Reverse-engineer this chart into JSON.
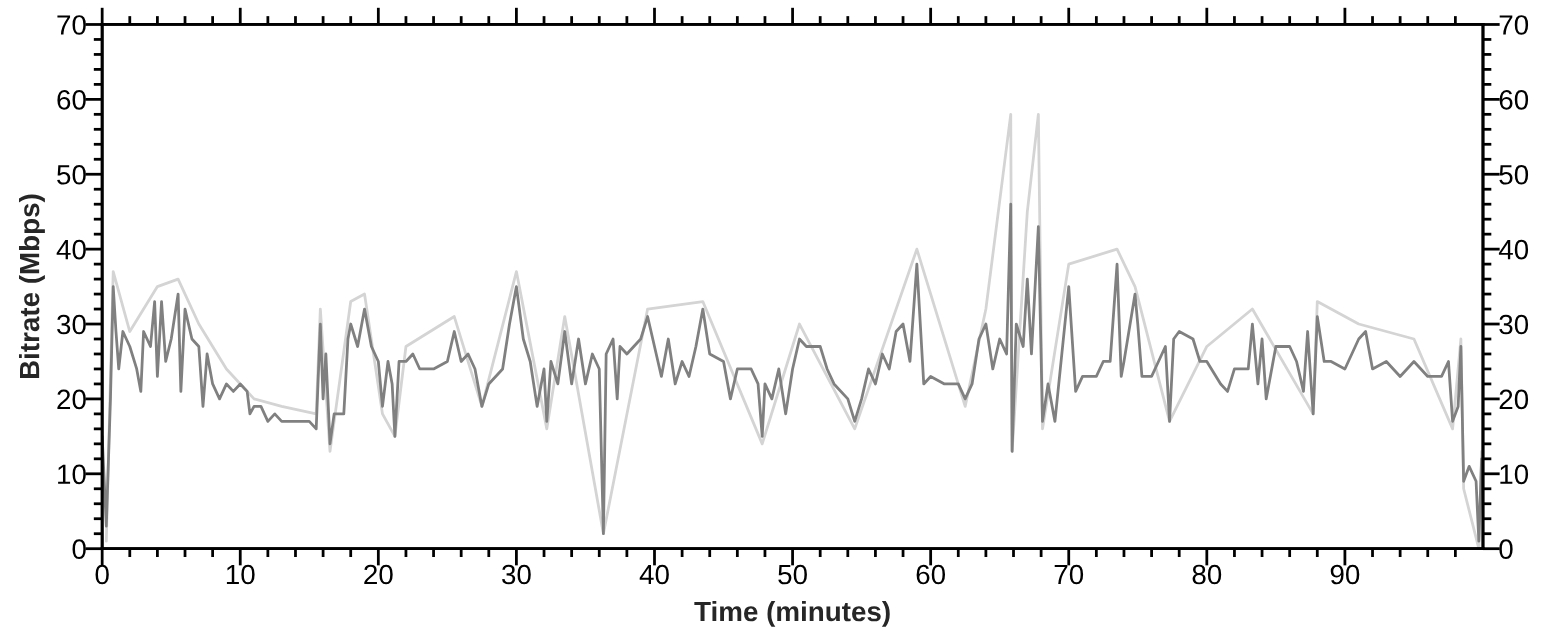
{
  "chart_data": {
    "type": "line",
    "xlabel": "Time (minutes)",
    "ylabel": "Bitrate (Mbps)",
    "xlim": [
      0,
      100
    ],
    "ylim": [
      0,
      70
    ],
    "y2lim": [
      0,
      70
    ],
    "xticks": [
      0,
      {
        "value": 2,
        "label": null
      },
      {
        "value": 4,
        "label": null
      },
      {
        "value": 6,
        "label": null
      },
      {
        "value": 8,
        "label": null
      },
      10,
      {
        "value": 12,
        "label": null
      },
      {
        "value": 14,
        "label": null
      },
      {
        "value": 16,
        "label": null
      },
      {
        "value": 18,
        "label": null
      },
      20,
      {
        "value": 22,
        "label": null
      },
      {
        "value": 24,
        "label": null
      },
      {
        "value": 26,
        "label": null
      },
      {
        "value": 28,
        "label": null
      },
      30,
      {
        "value": 32,
        "label": null
      },
      {
        "value": 34,
        "label": null
      },
      {
        "value": 36,
        "label": null
      },
      {
        "value": 38,
        "label": null
      },
      40,
      {
        "value": 42,
        "label": null
      },
      {
        "value": 44,
        "label": null
      },
      {
        "value": 46,
        "label": null
      },
      {
        "value": 48,
        "label": null
      },
      50,
      {
        "value": 52,
        "label": null
      },
      {
        "value": 54,
        "label": null
      },
      {
        "value": 56,
        "label": null
      },
      {
        "value": 58,
        "label": null
      },
      60,
      {
        "value": 62,
        "label": null
      },
      {
        "value": 64,
        "label": null
      },
      {
        "value": 66,
        "label": null
      },
      {
        "value": 68,
        "label": null
      },
      70,
      {
        "value": 72,
        "label": null
      },
      {
        "value": 74,
        "label": null
      },
      {
        "value": 76,
        "label": null
      },
      {
        "value": 78,
        "label": null
      },
      80,
      {
        "value": 82,
        "label": null
      },
      {
        "value": 84,
        "label": null
      },
      {
        "value": 86,
        "label": null
      },
      {
        "value": 88,
        "label": null
      },
      90,
      {
        "value": 92,
        "label": null
      },
      {
        "value": 94,
        "label": null
      },
      {
        "value": 96,
        "label": null
      },
      {
        "value": 98,
        "label": null
      }
    ],
    "yticks": [
      0,
      {
        "value": 2,
        "label": null
      },
      {
        "value": 4,
        "label": null
      },
      {
        "value": 6,
        "label": null
      },
      {
        "value": 8,
        "label": null
      },
      10,
      {
        "value": 12,
        "label": null
      },
      {
        "value": 14,
        "label": null
      },
      {
        "value": 16,
        "label": null
      },
      {
        "value": 18,
        "label": null
      },
      20,
      {
        "value": 22,
        "label": null
      },
      {
        "value": 24,
        "label": null
      },
      {
        "value": 26,
        "label": null
      },
      {
        "value": 28,
        "label": null
      },
      30,
      {
        "value": 32,
        "label": null
      },
      {
        "value": 34,
        "label": null
      },
      {
        "value": 36,
        "label": null
      },
      {
        "value": 38,
        "label": null
      },
      40,
      {
        "value": 42,
        "label": null
      },
      {
        "value": 44,
        "label": null
      },
      {
        "value": 46,
        "label": null
      },
      {
        "value": 48,
        "label": null
      },
      50,
      {
        "value": 52,
        "label": null
      },
      {
        "value": 54,
        "label": null
      },
      {
        "value": 56,
        "label": null
      },
      {
        "value": 58,
        "label": null
      },
      60,
      {
        "value": 62,
        "label": null
      },
      {
        "value": 64,
        "label": null
      },
      {
        "value": 66,
        "label": null
      },
      {
        "value": 68,
        "label": null
      },
      70
    ],
    "y2ticks": [
      0,
      {
        "value": 2,
        "label": null
      },
      {
        "value": 4,
        "label": null
      },
      {
        "value": 6,
        "label": null
      },
      {
        "value": 8,
        "label": null
      },
      10,
      {
        "value": 12,
        "label": null
      },
      {
        "value": 14,
        "label": null
      },
      {
        "value": 16,
        "label": null
      },
      {
        "value": 18,
        "label": null
      },
      20,
      {
        "value": 22,
        "label": null
      },
      {
        "value": 24,
        "label": null
      },
      {
        "value": 26,
        "label": null
      },
      {
        "value": 28,
        "label": null
      },
      30,
      {
        "value": 32,
        "label": null
      },
      {
        "value": 34,
        "label": null
      },
      {
        "value": 36,
        "label": null
      },
      {
        "value": 38,
        "label": null
      },
      40,
      {
        "value": 42,
        "label": null
      },
      {
        "value": 44,
        "label": null
      },
      {
        "value": 46,
        "label": null
      },
      {
        "value": 48,
        "label": null
      },
      50,
      {
        "value": 52,
        "label": null
      },
      {
        "value": 54,
        "label": null
      },
      {
        "value": 56,
        "label": null
      },
      {
        "value": 58,
        "label": null
      },
      60,
      {
        "value": 62,
        "label": null
      },
      {
        "value": 64,
        "label": null
      },
      {
        "value": 66,
        "label": null
      },
      {
        "value": 68,
        "label": null
      },
      70
    ],
    "grid": false,
    "legend": false,
    "series": [
      {
        "color": "#d4d4d4",
        "x": [
          0.3,
          0.8,
          2,
          4,
          5.5,
          7,
          9,
          11,
          13,
          15.5,
          15.8,
          16.5,
          18,
          19,
          20.3,
          21.2,
          22,
          25.5,
          27.5,
          30,
          32.2,
          33.5,
          36.3,
          39.5,
          43.5,
          47.8,
          50.5,
          54.5,
          59,
          62.5,
          64,
          65.8,
          65.9,
          67,
          67.8,
          68.1,
          70,
          73.5,
          74.8,
          77.3,
          80,
          83.3,
          87.7,
          88,
          91,
          95,
          97.8,
          98.4,
          98.6,
          99.7,
          99.9
        ],
        "values": [
          1,
          37,
          29,
          35,
          36,
          30,
          24,
          20,
          19,
          18,
          32,
          13,
          33,
          34,
          18,
          15,
          27,
          31,
          19,
          37,
          16,
          31,
          2,
          32,
          33,
          14,
          30,
          16,
          40,
          19,
          32,
          58,
          13,
          45,
          58,
          16,
          38,
          40,
          35,
          17,
          27,
          32,
          18,
          33,
          30,
          28,
          16,
          28,
          8,
          0,
          13
        ]
      },
      {
        "color": "#808080",
        "x": [
          0,
          0.3,
          0.6,
          0.8,
          1.0,
          1.2,
          1.5,
          2,
          2.5,
          2.8,
          3,
          3.5,
          3.8,
          4.0,
          4.3,
          4.6,
          5,
          5.5,
          5.7,
          6.0,
          6.5,
          7,
          7.3,
          7.6,
          8,
          8.5,
          9,
          9.5,
          10,
          10.5,
          10.7,
          11,
          11.5,
          12,
          12.5,
          13,
          14,
          15,
          15.5,
          15.8,
          16,
          16.2,
          16.5,
          16.8,
          17.5,
          17.8,
          18,
          18.5,
          19,
          19.5,
          20,
          20.3,
          20.7,
          21,
          21.2,
          21.5,
          22,
          22.5,
          23,
          24,
          25,
          25.5,
          26,
          26.5,
          27,
          27.5,
          28,
          29,
          29.5,
          30,
          30.5,
          31,
          31.5,
          32,
          32.2,
          32.5,
          33,
          33.5,
          34,
          34.5,
          35,
          35.5,
          36,
          36.3,
          36.5,
          37,
          37.3,
          37.5,
          38,
          39,
          39.5,
          40,
          40.5,
          41,
          41.5,
          42,
          42.5,
          43,
          43.5,
          44,
          45,
          45.5,
          46,
          47,
          47.5,
          47.8,
          48,
          48.5,
          49,
          49.5,
          50,
          50.5,
          51,
          52,
          52.5,
          53,
          54,
          54.5,
          55,
          55.5,
          56,
          56.5,
          57,
          57.5,
          58,
          58.5,
          59,
          59.5,
          60,
          61,
          62,
          62.5,
          63,
          63.5,
          64,
          64.5,
          65,
          65.5,
          65.8,
          65.9,
          66.2,
          66.7,
          67,
          67.3,
          67.8,
          68.1,
          68.5,
          69,
          69.5,
          70,
          70.5,
          71,
          72,
          72.5,
          73,
          73.5,
          73.8,
          74,
          74.8,
          75,
          75.3,
          76,
          76.5,
          77,
          77.3,
          77.6,
          78,
          79,
          79.5,
          80,
          81,
          81.5,
          82,
          83,
          83.3,
          83.7,
          84,
          84.3,
          85,
          86,
          86.5,
          87,
          87.3,
          87.7,
          88,
          88.5,
          89,
          90,
          91,
          91.5,
          92,
          93,
          94,
          95,
          96,
          97,
          97.5,
          97.8,
          98.2,
          98.4,
          98.6,
          99,
          99.5,
          99.7,
          99.9
        ],
        "values": [
          15,
          3,
          20,
          35,
          29,
          24,
          29,
          27,
          24,
          21,
          29,
          27,
          33,
          23,
          33,
          25,
          28,
          34,
          21,
          32,
          28,
          27,
          19,
          26,
          22,
          20,
          22,
          21,
          22,
          21,
          18,
          19,
          19,
          17,
          18,
          17,
          17,
          17,
          16,
          30,
          20,
          26,
          14,
          18,
          18,
          28,
          30,
          27,
          32,
          27,
          25,
          19,
          25,
          22,
          15,
          25,
          25,
          26,
          24,
          24,
          25,
          29,
          25,
          26,
          24,
          19,
          22,
          24,
          30,
          35,
          28,
          25,
          19,
          24,
          17,
          25,
          22,
          29,
          22,
          28,
          22,
          26,
          24,
          2,
          26,
          28,
          20,
          27,
          26,
          28,
          31,
          27,
          23,
          28,
          22,
          25,
          23,
          27,
          32,
          26,
          25,
          20,
          24,
          24,
          22,
          15,
          22,
          20,
          24,
          18,
          24,
          28,
          27,
          27,
          24,
          22,
          20,
          17,
          20,
          24,
          22,
          26,
          24,
          29,
          30,
          25,
          38,
          22,
          23,
          22,
          22,
          20,
          22,
          28,
          30,
          24,
          28,
          26,
          46,
          13,
          30,
          27,
          36,
          26,
          43,
          17,
          22,
          17,
          26,
          35,
          21,
          23,
          23,
          25,
          25,
          38,
          23,
          25,
          34,
          30,
          23,
          23,
          25,
          27,
          17,
          28,
          29,
          28,
          25,
          25,
          22,
          21,
          24,
          24,
          30,
          22,
          28,
          20,
          27,
          27,
          25,
          21,
          29,
          18,
          31,
          25,
          25,
          24,
          28,
          29,
          24,
          25,
          23,
          25,
          23,
          23,
          25,
          17,
          19,
          27,
          9,
          11,
          9,
          1,
          12
        ]
      }
    ]
  }
}
